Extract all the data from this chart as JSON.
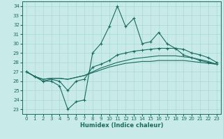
{
  "xlabel": "Humidex (Indice chaleur)",
  "ylabel": "",
  "xlim": [
    -0.5,
    23.5
  ],
  "ylim": [
    22.5,
    34.5
  ],
  "yticks": [
    23,
    24,
    25,
    26,
    27,
    28,
    29,
    30,
    31,
    32,
    33,
    34
  ],
  "xticks": [
    0,
    1,
    2,
    3,
    4,
    5,
    6,
    7,
    8,
    9,
    10,
    11,
    12,
    13,
    14,
    15,
    16,
    17,
    18,
    19,
    20,
    21,
    22,
    23
  ],
  "bg_color": "#c8eae8",
  "grid_color": "#a8d8d4",
  "line_color": "#1a6b60",
  "line1": [
    27.0,
    26.5,
    26.0,
    26.0,
    25.5,
    23.0,
    23.8,
    24.0,
    29.0,
    30.0,
    31.8,
    34.0,
    31.8,
    32.7,
    30.0,
    30.2,
    31.2,
    30.0,
    29.5,
    28.8,
    28.5,
    28.2,
    28.0,
    27.8
  ],
  "line2": [
    27.0,
    26.5,
    26.0,
    26.2,
    26.0,
    25.0,
    26.0,
    26.2,
    27.5,
    27.8,
    28.2,
    28.8,
    29.0,
    29.2,
    29.3,
    29.4,
    29.5,
    29.5,
    29.5,
    29.4,
    29.0,
    28.8,
    28.5,
    28.0
  ],
  "line3": [
    27.0,
    26.5,
    26.2,
    26.3,
    26.3,
    26.2,
    26.4,
    26.6,
    27.0,
    27.4,
    27.7,
    28.0,
    28.2,
    28.4,
    28.5,
    28.6,
    28.7,
    28.7,
    28.7,
    28.6,
    28.5,
    28.3,
    28.1,
    27.8
  ],
  "line4": [
    27.0,
    26.5,
    26.2,
    26.3,
    26.3,
    26.2,
    26.4,
    26.6,
    26.9,
    27.2,
    27.5,
    27.7,
    27.9,
    28.0,
    28.1,
    28.1,
    28.2,
    28.2,
    28.2,
    28.2,
    28.1,
    28.0,
    27.9,
    27.8
  ]
}
